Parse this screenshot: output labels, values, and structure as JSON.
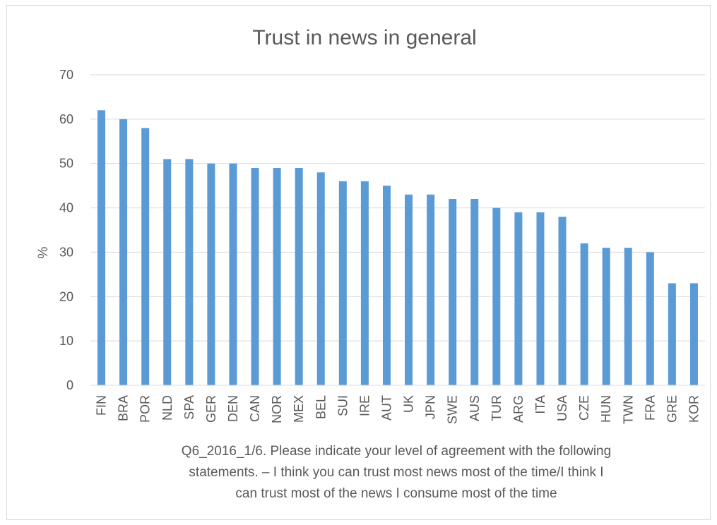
{
  "chart_data": {
    "type": "bar",
    "title": "Trust in news in general",
    "xlabel_lines": [
      "Q6_2016_1/6. Please indicate your level of agreement with the following",
      "statements. – I think you can trust most news most of the time/I think I",
      "can trust most of the news I consume most of the time"
    ],
    "ylabel": "%",
    "ylim": [
      0,
      70
    ],
    "yticks": [
      0,
      10,
      20,
      30,
      40,
      50,
      60,
      70
    ],
    "grid": true,
    "legend": "none",
    "bar_color": "#5b9bd5",
    "categories": [
      "FIN",
      "BRA",
      "POR",
      "NLD",
      "SPA",
      "GER",
      "DEN",
      "CAN",
      "NOR",
      "MEX",
      "BEL",
      "SUI",
      "IRE",
      "AUT",
      "UK",
      "JPN",
      "SWE",
      "AUS",
      "TUR",
      "ARG",
      "ITA",
      "USA",
      "CZE",
      "HUN",
      "TWN",
      "FRA",
      "GRE",
      "KOR"
    ],
    "values": [
      62,
      60,
      58,
      51,
      51,
      50,
      50,
      49,
      49,
      49,
      48,
      46,
      46,
      45,
      43,
      43,
      42,
      42,
      40,
      39,
      39,
      38,
      32,
      31,
      31,
      30,
      23,
      23
    ]
  }
}
